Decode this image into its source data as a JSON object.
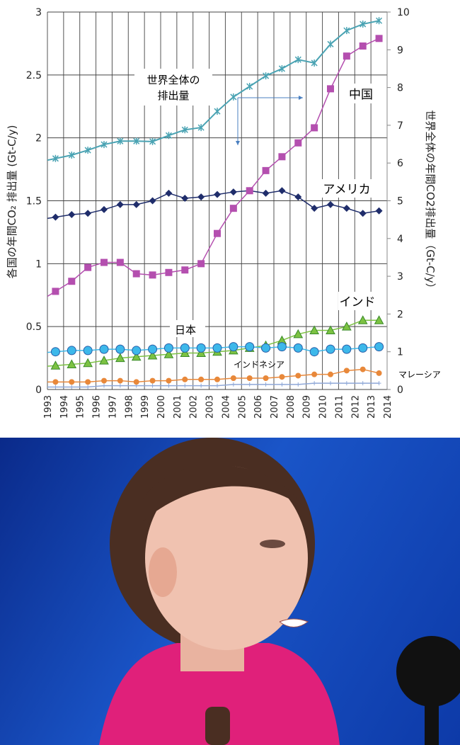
{
  "chart_data": {
    "type": "line",
    "x": [
      1993,
      1994,
      1995,
      1996,
      1997,
      1998,
      1999,
      2000,
      2001,
      2002,
      2003,
      2004,
      2005,
      2006,
      2007,
      2008,
      2009,
      2010,
      2011,
      2012,
      2013
    ],
    "xticks": [
      "1993",
      "1994",
      "1995",
      "1996",
      "1997",
      "1998",
      "1999",
      "2000",
      "2001",
      "2002",
      "2003",
      "2004",
      "2005",
      "2006",
      "2007",
      "2008",
      "2009",
      "2010",
      "2011",
      "2012",
      "2013",
      "2014"
    ],
    "ylabel": "各国の年間CO₂ 排出量 (Gt-C/y)",
    "ylabel2": "世界全体の年間CO2排出量（Gt-C/y）",
    "ylim": [
      0,
      3
    ],
    "yticks": [
      "0",
      "0.5",
      "1",
      "1.5",
      "2",
      "2.5",
      "3"
    ],
    "ylim2": [
      0,
      10
    ],
    "yticks2": [
      "0",
      "1",
      "2",
      "3",
      "4",
      "5",
      "6",
      "7",
      "8",
      "9",
      "10"
    ],
    "grid": true,
    "series": [
      {
        "name": "世界全体の排出量",
        "axis": "right",
        "color": "#4aa3b3",
        "marker": "star",
        "values": [
          6.12,
          6.21,
          6.34,
          6.49,
          6.58,
          6.58,
          6.57,
          6.73,
          6.88,
          6.94,
          7.37,
          7.75,
          8.03,
          8.31,
          8.5,
          8.74,
          8.65,
          9.15,
          9.51,
          9.68,
          9.77
        ]
      },
      {
        "name": "中国",
        "axis": "left",
        "color": "#b44faf",
        "marker": "square",
        "values": [
          0.78,
          0.86,
          0.97,
          1.01,
          1.01,
          0.92,
          0.91,
          0.93,
          0.95,
          1.0,
          1.24,
          1.44,
          1.58,
          1.74,
          1.85,
          1.96,
          2.08,
          2.39,
          2.65,
          2.73,
          2.79
        ]
      },
      {
        "name": "アメリカ",
        "axis": "left",
        "color": "#1f2d6b",
        "marker": "diamond",
        "values": [
          1.37,
          1.39,
          1.4,
          1.43,
          1.47,
          1.47,
          1.5,
          1.56,
          1.52,
          1.53,
          1.55,
          1.57,
          1.58,
          1.56,
          1.58,
          1.53,
          1.44,
          1.47,
          1.44,
          1.4,
          1.42
        ]
      },
      {
        "name": "日本",
        "axis": "left",
        "color": "#3db8ea",
        "marker": "circle",
        "values": [
          0.3,
          0.31,
          0.31,
          0.32,
          0.32,
          0.31,
          0.32,
          0.33,
          0.33,
          0.33,
          0.33,
          0.34,
          0.34,
          0.33,
          0.34,
          0.33,
          0.3,
          0.32,
          0.32,
          0.33,
          0.34
        ]
      },
      {
        "name": "インド",
        "axis": "left",
        "color": "#7cc242",
        "marker": "triangle",
        "values": [
          0.19,
          0.2,
          0.21,
          0.23,
          0.25,
          0.26,
          0.27,
          0.28,
          0.29,
          0.29,
          0.3,
          0.31,
          0.33,
          0.35,
          0.39,
          0.44,
          0.47,
          0.47,
          0.5,
          0.55,
          0.55
        ]
      },
      {
        "name": "インドネシア",
        "axis": "left",
        "color": "#e8883a",
        "marker": "dot",
        "values": [
          0.06,
          0.06,
          0.06,
          0.07,
          0.07,
          0.06,
          0.07,
          0.07,
          0.08,
          0.08,
          0.08,
          0.09,
          0.09,
          0.09,
          0.1,
          0.11,
          0.12,
          0.12,
          0.15,
          0.16,
          0.13
        ]
      },
      {
        "name": "マレーシア",
        "axis": "left",
        "color": "#8fa8d8",
        "marker": "plus",
        "values": [
          0.02,
          0.02,
          0.02,
          0.03,
          0.03,
          0.03,
          0.03,
          0.03,
          0.03,
          0.03,
          0.03,
          0.04,
          0.04,
          0.04,
          0.04,
          0.04,
          0.05,
          0.05,
          0.05,
          0.05,
          0.05
        ]
      }
    ],
    "annotations": {
      "world1": "世界全体の",
      "world2": "排出量",
      "china": "中国",
      "usa": "アメリカ",
      "japan": "日本",
      "india": "インド",
      "indonesia": "インドネシア",
      "malaysia": "マレーシア"
    }
  }
}
